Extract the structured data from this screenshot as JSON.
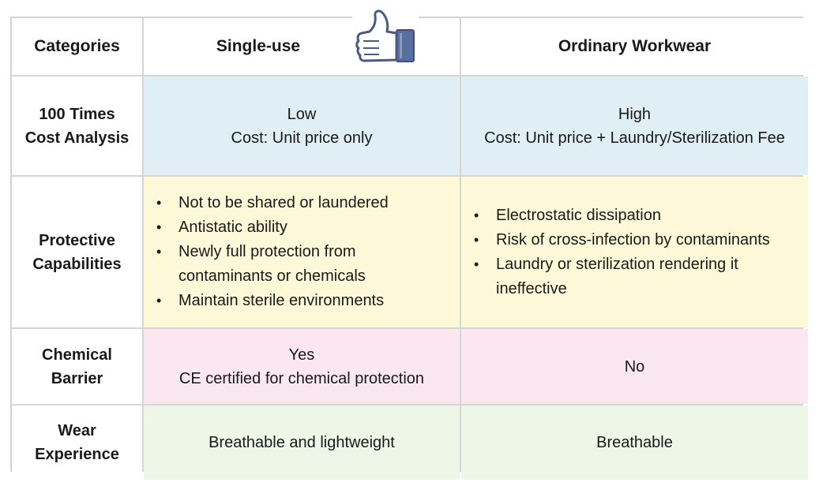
{
  "header": {
    "col1": "Categories",
    "col2": "Single-use",
    "col3": "Ordinary Workwear",
    "thumb_icon": "thumbs-up-icon"
  },
  "rows": [
    {
      "label_line1": "100 Times",
      "label_line2": "Cost Analysis",
      "single_line1": "Low",
      "single_line2": "Cost: Unit price only",
      "ordinary_line1": "High",
      "ordinary_line2": "Cost: Unit price + Laundry/Sterilization Fee"
    },
    {
      "label_line1": "Protective",
      "label_line2": "Capabilities",
      "single_bullets": [
        "Not to be shared or laundered",
        "Antistatic ability",
        "Newly full protection from contaminants or chemicals",
        "Maintain sterile environments"
      ],
      "ordinary_bullets": [
        "Electrostatic dissipation",
        "Risk of cross-infection by contaminants",
        "Laundry or sterilization rendering it ineffective"
      ]
    },
    {
      "label_line1": "Chemical",
      "label_line2": "Barrier",
      "single_line1": "Yes",
      "single_line2": "CE certified for chemical protection",
      "ordinary_line1": "No"
    },
    {
      "label_line1": "Wear",
      "label_line2": "Experience",
      "single_line1": "Breathable and lightweight",
      "ordinary_line1": "Breathable"
    }
  ],
  "colors": {
    "cost_row": "#e0eff6",
    "protective_row": "#fdf8d7",
    "chemical_row": "#fbe7f0",
    "wear_row": "#eef6e7",
    "thumb_cuff": "#5b6f9f"
  }
}
